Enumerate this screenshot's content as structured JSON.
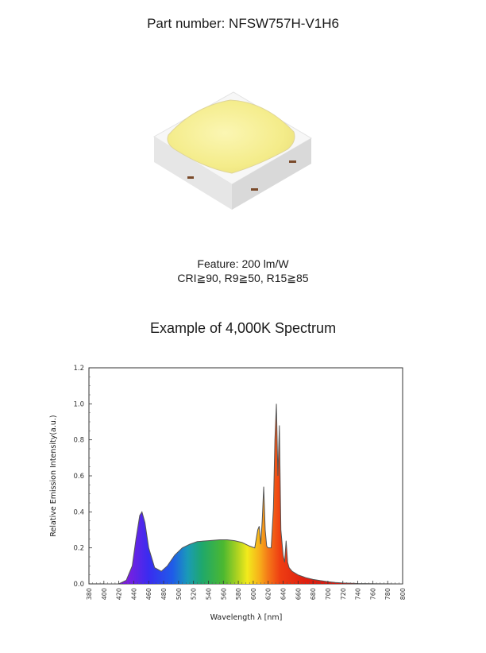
{
  "header": {
    "part_number": "Part number: NFSW757H-V1H6"
  },
  "feature": {
    "line1": "Feature: 200 lm/W",
    "line2": "CRI≧90, R9≧50, R15≧85"
  },
  "spectrum_title": "Example of 4,000K Spectrum",
  "chart_data": {
    "type": "area",
    "xlabel": "Wavelength λ [nm]",
    "ylabel": "Relative Emission Intensity(a.u.)",
    "xlim": [
      380,
      800
    ],
    "ylim": [
      0,
      1.2
    ],
    "x_ticks": [
      "380",
      "400",
      "420",
      "440",
      "460",
      "480",
      "500",
      "520",
      "540",
      "560",
      "580",
      "600",
      "620",
      "640",
      "660",
      "680",
      "700",
      "720",
      "740",
      "760",
      "780",
      "800"
    ],
    "y_ticks": [
      "0.0",
      "0.2",
      "0.4",
      "0.6",
      "0.8",
      "1.0",
      "1.2"
    ],
    "grid": false,
    "fill": "visible-spectrum gradient",
    "series": [
      {
        "x": [
          400,
          420,
          430,
          438,
          443,
          448,
          451,
          455,
          460,
          468,
          477,
          485,
          495,
          505,
          515,
          525,
          540,
          555,
          565,
          575,
          585,
          595,
          602,
          606,
          608,
          610,
          612,
          614,
          616,
          618,
          620,
          624,
          627,
          629,
          631,
          633,
          635,
          637,
          640,
          642,
          644,
          646,
          648,
          652,
          660,
          670,
          680,
          690,
          700,
          710,
          720,
          740,
          760,
          800
        ],
        "y": [
          0.0,
          0.0,
          0.02,
          0.1,
          0.25,
          0.38,
          0.4,
          0.34,
          0.2,
          0.09,
          0.07,
          0.1,
          0.16,
          0.2,
          0.22,
          0.235,
          0.24,
          0.245,
          0.245,
          0.24,
          0.23,
          0.21,
          0.2,
          0.3,
          0.32,
          0.22,
          0.35,
          0.54,
          0.3,
          0.21,
          0.2,
          0.2,
          0.42,
          0.8,
          1.0,
          0.6,
          0.88,
          0.3,
          0.16,
          0.12,
          0.24,
          0.12,
          0.09,
          0.07,
          0.05,
          0.035,
          0.025,
          0.018,
          0.012,
          0.008,
          0.005,
          0.002,
          0.001,
          0.0
        ]
      }
    ]
  },
  "colors": {
    "frame": "#333333",
    "curve": "#555555",
    "led_phosphor": "#f6ef9a"
  }
}
